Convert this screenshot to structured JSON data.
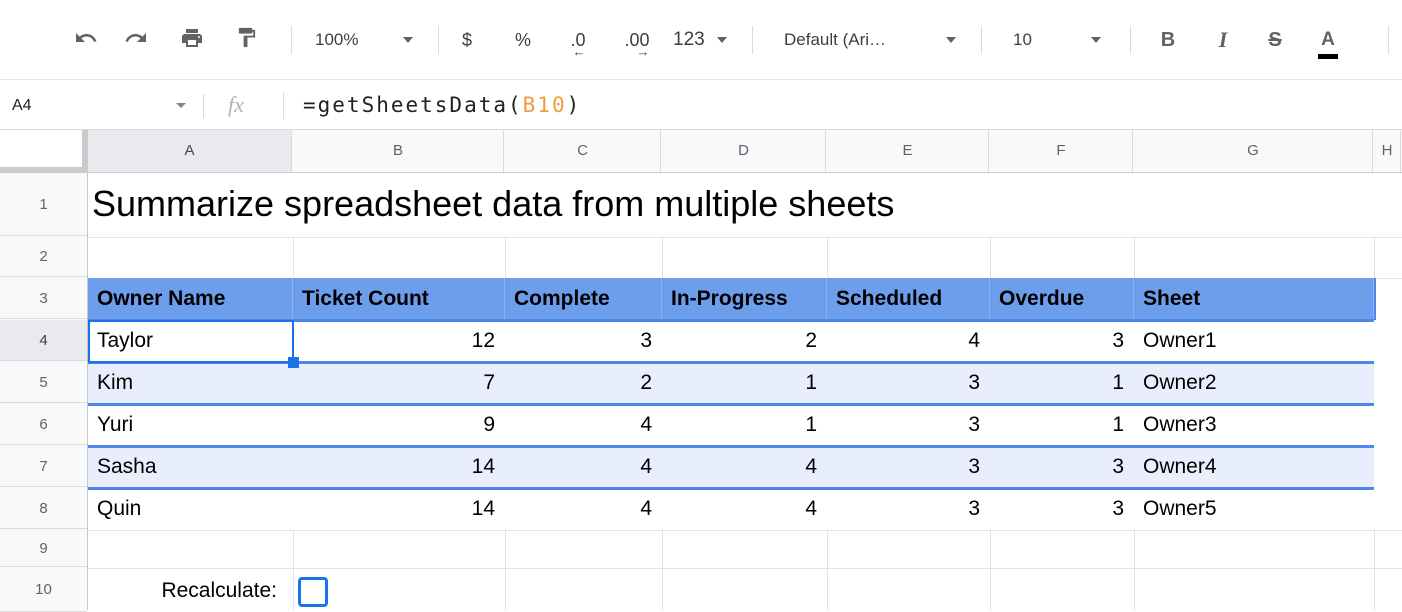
{
  "toolbar": {
    "zoom_value": "100%",
    "currency_label": "$",
    "percent_label": "%",
    "decrease_decimal_label": ".0",
    "decrease_decimal_arrow": "←",
    "increase_decimal_label": ".00",
    "increase_decimal_arrow": "→",
    "number_format_label": "123",
    "font_name": "Default (Ari…",
    "font_size": "10",
    "bold_label": "B",
    "italic_label": "I",
    "strikethrough_label": "S",
    "text_color_label": "A"
  },
  "formula_bar": {
    "name_box": "A4",
    "fx_label": "fx",
    "formula_prefix": "=getSheetsData(",
    "formula_ref": "B10",
    "formula_suffix": ")"
  },
  "grid": {
    "column_letters": [
      "A",
      "B",
      "C",
      "D",
      "E",
      "F",
      "G",
      "H"
    ],
    "row_numbers": [
      "1",
      "2",
      "3",
      "4",
      "5",
      "6",
      "7",
      "8",
      "9",
      "10"
    ],
    "selected_cell": "A4",
    "selected_column": "A",
    "selected_row": "4",
    "title": "Summarize spreadsheet data from multiple sheets",
    "table": {
      "headers": [
        "Owner Name",
        "Ticket Count",
        "Complete",
        "In-Progress",
        "Scheduled",
        "Overdue",
        "Sheet"
      ],
      "rows": [
        [
          "Taylor",
          "12",
          "3",
          "2",
          "4",
          "3",
          "Owner1"
        ],
        [
          "Kim",
          "7",
          "2",
          "1",
          "3",
          "1",
          "Owner2"
        ],
        [
          "Yuri",
          "9",
          "4",
          "1",
          "3",
          "1",
          "Owner3"
        ],
        [
          "Sasha",
          "14",
          "4",
          "4",
          "3",
          "3",
          "Owner4"
        ],
        [
          "Quin",
          "14",
          "4",
          "4",
          "3",
          "3",
          "Owner5"
        ]
      ]
    },
    "recalculate_label": "Recalculate:",
    "checkbox_checked": false
  },
  "colors": {
    "table_header_blue": "#6d9eeb",
    "row_band_blue": "#e8eefb",
    "row_border_blue": "#4e86ec",
    "selection_blue": "#1a73e8",
    "formula_ref_orange": "#ed9c3f",
    "toolbar_icon_gray": "#5f6368"
  }
}
